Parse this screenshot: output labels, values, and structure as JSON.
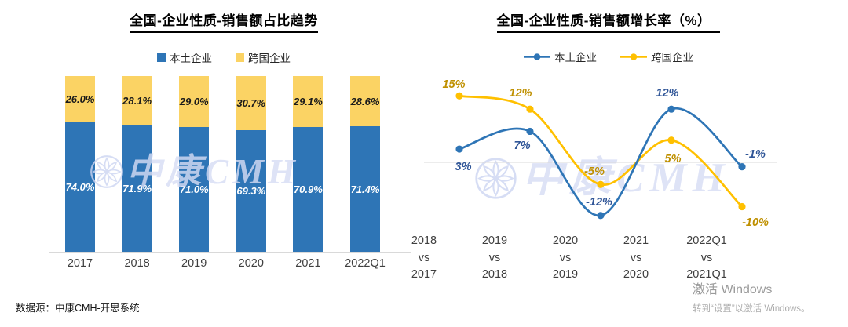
{
  "page": {
    "source_note": "数据源：中康CMH-开思系统",
    "watermark_text": "中康CMH",
    "activation": {
      "line1": "激活 Windows",
      "line2": "转到“设置”以激活 Windows。"
    }
  },
  "chart_data": [
    {
      "type": "bar",
      "stacked": true,
      "title": "全国-企业性质-销售额占比趋势",
      "categories": [
        "2017",
        "2018",
        "2019",
        "2020",
        "2021",
        "2022Q1"
      ],
      "series": [
        {
          "name": "本土企业",
          "color": "#2E75B6",
          "label_color": "#FFFFFF",
          "values": [
            74.0,
            71.9,
            71.0,
            69.3,
            70.9,
            71.4
          ],
          "labels": [
            "74.0%",
            "71.9%",
            "71.0%",
            "69.3%",
            "70.9%",
            "71.4%"
          ]
        },
        {
          "name": "跨国企业",
          "color": "#FBD364",
          "label_color": "#1A1A1A",
          "values": [
            26.0,
            28.1,
            29.0,
            30.7,
            29.1,
            28.6
          ],
          "labels": [
            "26.0%",
            "28.1%",
            "29.0%",
            "30.7%",
            "29.1%",
            "28.6%"
          ]
        }
      ],
      "ylim": [
        0,
        100
      ],
      "xlabel": "",
      "ylabel": "",
      "legend_position": "top",
      "grid": false,
      "axis_color": "#D9D9D9"
    },
    {
      "type": "line",
      "smooth": true,
      "title": "全国-企业性质-销售额增长率（%）",
      "categories": [
        [
          "2018",
          "vs",
          "2017"
        ],
        [
          "2019",
          "vs",
          "2018"
        ],
        [
          "2020",
          "vs",
          "2019"
        ],
        [
          "2021",
          "vs",
          "2020"
        ],
        [
          "2022Q1",
          "vs",
          "2021Q1"
        ]
      ],
      "series": [
        {
          "name": "本土企业",
          "color": "#2E75B6",
          "label_color": "#2F5597",
          "values": [
            3,
            7,
            -12,
            12,
            -1
          ],
          "labels": [
            "3%",
            "7%",
            "-12%",
            "12%",
            "-1%"
          ]
        },
        {
          "name": "跨国企业",
          "color": "#FFC000",
          "label_color": "#BF9000",
          "values": [
            15,
            12,
            -5,
            5,
            -10
          ],
          "labels": [
            "15%",
            "12%",
            "-5%",
            "5%",
            "-10%"
          ]
        }
      ],
      "baseline": 0,
      "xlabel": "",
      "ylabel": "",
      "legend_position": "top",
      "grid": "baseline-only"
    }
  ]
}
